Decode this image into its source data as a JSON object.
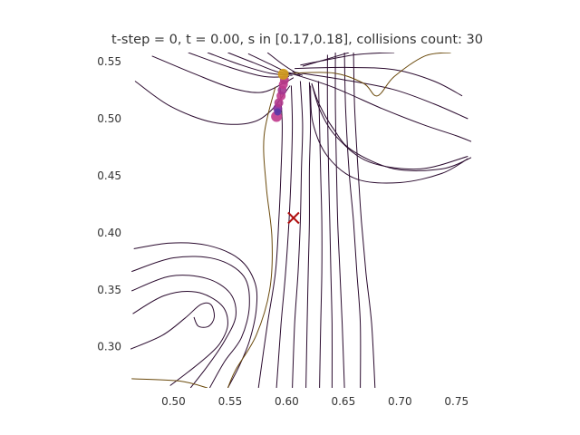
{
  "chart_data": {
    "type": "line",
    "title": "t-step = 0, t = 0.00, s in [0.17,0.18], collisions count: 30",
    "xlabel": "",
    "ylabel": "",
    "xlim": [
      0.462,
      0.763
    ],
    "ylim": [
      0.264,
      0.558
    ],
    "x_ticks": [
      0.5,
      0.55,
      0.6,
      0.65,
      0.7,
      0.75
    ],
    "x_tick_labels": [
      "0.50",
      "0.55",
      "0.60",
      "0.65",
      "0.70",
      "0.75"
    ],
    "y_ticks": [
      0.3,
      0.35,
      0.4,
      0.45,
      0.5,
      0.55
    ],
    "y_tick_labels": [
      "0.30",
      "0.35",
      "0.40",
      "0.45",
      "0.50",
      "0.55"
    ],
    "grid": false,
    "axes_frame": false,
    "colors": {
      "dark_line": "#2a0a2e",
      "brown_line": "#6b4a0c",
      "marker_orange": "#d29a18",
      "marker_magenta": "#c03a8c",
      "marker_purple": "#8a2a9a",
      "marker_blue": "#5a3aa8",
      "cross": "#b01010"
    },
    "streamlines": [
      {
        "color": "#2a0a2e",
        "points": [
          [
            0.466,
            0.533
          ],
          [
            0.497,
            0.511
          ],
          [
            0.534,
            0.497
          ],
          [
            0.566,
            0.496
          ],
          [
            0.585,
            0.506
          ],
          [
            0.603,
            0.529
          ]
        ]
      },
      {
        "color": "#2a0a2e",
        "points": [
          [
            0.481,
            0.555
          ],
          [
            0.517,
            0.54
          ],
          [
            0.551,
            0.527
          ],
          [
            0.577,
            0.523
          ],
          [
            0.597,
            0.531
          ],
          [
            0.606,
            0.536
          ]
        ]
      },
      {
        "color": "#2a0a2e",
        "points": [
          [
            0.513,
            0.558
          ],
          [
            0.55,
            0.545
          ],
          [
            0.58,
            0.537
          ],
          [
            0.602,
            0.537
          ]
        ]
      },
      {
        "color": "#2a0a2e",
        "points": [
          [
            0.53,
            0.558
          ],
          [
            0.56,
            0.547
          ],
          [
            0.585,
            0.54
          ],
          [
            0.605,
            0.538
          ]
        ]
      },
      {
        "color": "#2a0a2e",
        "points": [
          [
            0.548,
            0.558
          ],
          [
            0.571,
            0.549
          ],
          [
            0.592,
            0.541
          ],
          [
            0.607,
            0.539
          ]
        ]
      },
      {
        "color": "#2a0a2e",
        "points": [
          [
            0.566,
            0.557
          ],
          [
            0.585,
            0.548
          ],
          [
            0.6,
            0.541
          ],
          [
            0.612,
            0.538
          ]
        ]
      },
      {
        "color": "#2a0a2e",
        "points": [
          [
            0.583,
            0.558
          ],
          [
            0.596,
            0.548
          ],
          [
            0.607,
            0.541
          ],
          [
            0.614,
            0.538
          ]
        ]
      },
      {
        "color": "#2a0a2e",
        "points": [
          [
            0.622,
            0.531
          ],
          [
            0.629,
            0.512
          ],
          [
            0.642,
            0.49
          ],
          [
            0.658,
            0.472
          ],
          [
            0.695,
            0.456
          ],
          [
            0.737,
            0.456
          ],
          [
            0.763,
            0.466
          ]
        ]
      },
      {
        "color": "#2a0a2e",
        "points": [
          [
            0.622,
            0.531
          ],
          [
            0.63,
            0.506
          ],
          [
            0.645,
            0.483
          ],
          [
            0.673,
            0.462
          ],
          [
            0.718,
            0.456
          ],
          [
            0.76,
            0.467
          ]
        ]
      },
      {
        "color": "#2a0a2e",
        "points": [
          [
            0.621,
            0.529
          ],
          [
            0.623,
            0.497
          ],
          [
            0.636,
            0.467
          ],
          [
            0.662,
            0.447
          ],
          [
            0.7,
            0.444
          ],
          [
            0.737,
            0.452
          ],
          [
            0.76,
            0.465
          ]
        ]
      },
      {
        "color": "#2a0a2e",
        "points": [
          [
            0.603,
            0.54
          ],
          [
            0.64,
            0.528
          ],
          [
            0.684,
            0.509
          ],
          [
            0.72,
            0.495
          ],
          [
            0.75,
            0.485
          ],
          [
            0.763,
            0.48
          ]
        ]
      },
      {
        "color": "#2a0a2e",
        "points": [
          [
            0.605,
            0.541
          ],
          [
            0.645,
            0.535
          ],
          [
            0.693,
            0.526
          ],
          [
            0.73,
            0.513
          ],
          [
            0.76,
            0.5
          ]
        ]
      },
      {
        "color": "#2a0a2e",
        "points": [
          [
            0.607,
            0.544
          ],
          [
            0.652,
            0.545
          ],
          [
            0.695,
            0.543
          ],
          [
            0.73,
            0.533
          ],
          [
            0.755,
            0.52
          ]
        ]
      },
      {
        "color": "#2a0a2e",
        "points": [
          [
            0.612,
            0.547
          ],
          [
            0.66,
            0.556
          ],
          [
            0.695,
            0.558
          ]
        ]
      },
      {
        "color": "#2a0a2e",
        "points": [
          [
            0.614,
            0.546
          ],
          [
            0.655,
            0.558
          ]
        ]
      },
      {
        "color": "#2a0a2e",
        "points": [
          [
            0.465,
            0.386
          ],
          [
            0.497,
            0.391
          ],
          [
            0.53,
            0.389
          ],
          [
            0.558,
            0.377
          ],
          [
            0.572,
            0.356
          ],
          [
            0.573,
            0.332
          ],
          [
            0.567,
            0.305
          ],
          [
            0.558,
            0.283
          ],
          [
            0.548,
            0.264
          ]
        ]
      },
      {
        "color": "#2a0a2e",
        "points": [
          [
            0.463,
            0.366
          ],
          [
            0.5,
            0.378
          ],
          [
            0.537,
            0.377
          ],
          [
            0.562,
            0.362
          ],
          [
            0.567,
            0.336
          ],
          [
            0.56,
            0.308
          ],
          [
            0.545,
            0.287
          ],
          [
            0.532,
            0.264
          ]
        ]
      },
      {
        "color": "#2a0a2e",
        "points": [
          [
            0.463,
            0.349
          ],
          [
            0.497,
            0.362
          ],
          [
            0.529,
            0.36
          ],
          [
            0.55,
            0.347
          ],
          [
            0.555,
            0.327
          ],
          [
            0.545,
            0.305
          ],
          [
            0.53,
            0.283
          ],
          [
            0.515,
            0.264
          ]
        ]
      },
      {
        "color": "#2a0a2e",
        "points": [
          [
            0.464,
            0.329
          ],
          [
            0.492,
            0.345
          ],
          [
            0.52,
            0.348
          ],
          [
            0.542,
            0.337
          ],
          [
            0.548,
            0.32
          ],
          [
            0.541,
            0.303
          ],
          [
            0.528,
            0.29
          ],
          [
            0.513,
            0.278
          ],
          [
            0.497,
            0.266
          ]
        ]
      },
      {
        "color": "#2a0a2e",
        "points": [
          [
            0.462,
            0.298
          ],
          [
            0.49,
            0.31
          ],
          [
            0.51,
            0.325
          ],
          [
            0.524,
            0.337
          ],
          [
            0.533,
            0.337
          ],
          [
            0.536,
            0.326
          ],
          [
            0.531,
            0.318
          ],
          [
            0.522,
            0.318
          ],
          [
            0.518,
            0.326
          ]
        ]
      },
      {
        "color": "#2a0a2e",
        "points": [
          [
            0.594,
            0.529
          ],
          [
            0.596,
            0.495
          ],
          [
            0.595,
            0.455
          ],
          [
            0.593,
            0.41
          ],
          [
            0.59,
            0.365
          ],
          [
            0.583,
            0.32
          ],
          [
            0.575,
            0.264
          ]
        ]
      },
      {
        "color": "#2a0a2e",
        "points": [
          [
            0.604,
            0.529
          ],
          [
            0.605,
            0.495
          ],
          [
            0.604,
            0.455
          ],
          [
            0.602,
            0.41
          ],
          [
            0.599,
            0.365
          ],
          [
            0.595,
            0.32
          ],
          [
            0.591,
            0.264
          ]
        ]
      },
      {
        "color": "#2a0a2e",
        "points": [
          [
            0.612,
            0.533
          ],
          [
            0.614,
            0.495
          ],
          [
            0.613,
            0.455
          ],
          [
            0.612,
            0.41
          ],
          [
            0.61,
            0.365
          ],
          [
            0.607,
            0.32
          ],
          [
            0.605,
            0.264
          ]
        ]
      },
      {
        "color": "#2a0a2e",
        "points": [
          [
            0.62,
            0.532
          ],
          [
            0.621,
            0.495
          ],
          [
            0.62,
            0.455
          ],
          [
            0.62,
            0.41
          ],
          [
            0.619,
            0.365
          ],
          [
            0.618,
            0.32
          ],
          [
            0.617,
            0.264
          ]
        ]
      },
      {
        "color": "#2a0a2e",
        "points": [
          [
            0.628,
            0.533
          ],
          [
            0.629,
            0.495
          ],
          [
            0.63,
            0.45
          ],
          [
            0.631,
            0.41
          ],
          [
            0.631,
            0.365
          ],
          [
            0.63,
            0.32
          ],
          [
            0.629,
            0.264
          ]
        ]
      },
      {
        "color": "#2a0a2e",
        "points": [
          [
            0.636,
            0.556
          ],
          [
            0.636,
            0.51
          ],
          [
            0.637,
            0.455
          ],
          [
            0.638,
            0.41
          ],
          [
            0.639,
            0.365
          ],
          [
            0.64,
            0.32
          ],
          [
            0.64,
            0.264
          ]
        ]
      },
      {
        "color": "#2a0a2e",
        "points": [
          [
            0.643,
            0.558
          ],
          [
            0.643,
            0.51
          ],
          [
            0.644,
            0.455
          ],
          [
            0.645,
            0.41
          ],
          [
            0.647,
            0.365
          ],
          [
            0.649,
            0.32
          ],
          [
            0.651,
            0.264
          ]
        ]
      },
      {
        "color": "#2a0a2e",
        "points": [
          [
            0.651,
            0.558
          ],
          [
            0.652,
            0.51
          ],
          [
            0.655,
            0.455
          ],
          [
            0.659,
            0.41
          ],
          [
            0.662,
            0.365
          ],
          [
            0.665,
            0.32
          ],
          [
            0.665,
            0.264
          ]
        ]
      },
      {
        "color": "#2a0a2e",
        "points": [
          [
            0.659,
            0.558
          ],
          [
            0.66,
            0.51
          ],
          [
            0.663,
            0.455
          ],
          [
            0.666,
            0.41
          ],
          [
            0.67,
            0.365
          ],
          [
            0.675,
            0.32
          ],
          [
            0.678,
            0.264
          ]
        ]
      },
      {
        "color": "#6b4a0c",
        "points": [
          [
            0.463,
            0.272
          ],
          [
            0.505,
            0.27
          ],
          [
            0.53,
            0.264
          ]
        ]
      },
      {
        "color": "#6b4a0c",
        "points": [
          [
            0.59,
            0.528
          ],
          [
            0.58,
            0.485
          ],
          [
            0.582,
            0.44
          ],
          [
            0.587,
            0.395
          ],
          [
            0.585,
            0.35
          ],
          [
            0.573,
            0.31
          ],
          [
            0.555,
            0.28
          ],
          [
            0.548,
            0.264
          ]
        ]
      },
      {
        "color": "#6b4a0c",
        "points": [
          [
            0.606,
            0.54
          ],
          [
            0.642,
            0.54
          ],
          [
            0.668,
            0.531
          ],
          [
            0.68,
            0.52
          ],
          [
            0.695,
            0.537
          ],
          [
            0.722,
            0.555
          ],
          [
            0.745,
            0.558
          ]
        ]
      }
    ],
    "markers": [
      {
        "x": 0.591,
        "y": 0.502,
        "color": "#c03a8c",
        "size": 6
      },
      {
        "x": 0.592,
        "y": 0.509,
        "color": "#8a2a9a",
        "size": 5
      },
      {
        "x": 0.593,
        "y": 0.514,
        "color": "#b0388c",
        "size": 5
      },
      {
        "x": 0.595,
        "y": 0.52,
        "color": "#c03a8c",
        "size": 5
      },
      {
        "x": 0.596,
        "y": 0.525,
        "color": "#a3358f",
        "size": 5
      },
      {
        "x": 0.597,
        "y": 0.53,
        "color": "#c03a8c",
        "size": 5
      },
      {
        "x": 0.598,
        "y": 0.534,
        "color": "#b23a86",
        "size": 5
      },
      {
        "x": 0.592,
        "y": 0.506,
        "color": "#5a3aa8",
        "size": 4
      },
      {
        "x": 0.597,
        "y": 0.539,
        "color": "#d29a18",
        "size": 6
      }
    ],
    "target_marker": {
      "x": 0.606,
      "y": 0.413,
      "color": "#b01010",
      "shape": "x"
    }
  }
}
